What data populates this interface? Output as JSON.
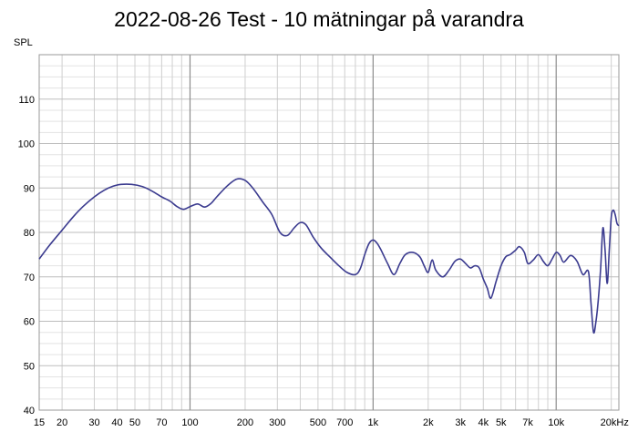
{
  "chart_data": {
    "type": "line",
    "title": "2022-08-26 Test - 10 mätningar på varandra",
    "ylabel": "SPL",
    "xlabel": "",
    "xscale": "log",
    "xlim": [
      15,
      22000
    ],
    "ylim": [
      40,
      120
    ],
    "grid": true,
    "line_color": "#3b3b8f",
    "x_ticks": [
      {
        "value": 15,
        "label": "15"
      },
      {
        "value": 20,
        "label": "20"
      },
      {
        "value": 30,
        "label": "30"
      },
      {
        "value": 40,
        "label": "40"
      },
      {
        "value": 50,
        "label": "50"
      },
      {
        "value": 70,
        "label": "70"
      },
      {
        "value": 100,
        "label": "100"
      },
      {
        "value": 200,
        "label": "200"
      },
      {
        "value": 300,
        "label": "300"
      },
      {
        "value": 500,
        "label": "500"
      },
      {
        "value": 700,
        "label": "700"
      },
      {
        "value": 1000,
        "label": "1k"
      },
      {
        "value": 2000,
        "label": "2k"
      },
      {
        "value": 3000,
        "label": "3k"
      },
      {
        "value": 4000,
        "label": "4k"
      },
      {
        "value": 5000,
        "label": "5k"
      },
      {
        "value": 7000,
        "label": "7k"
      },
      {
        "value": 10000,
        "label": "10k"
      },
      {
        "value": 20000,
        "label": "20kHz"
      }
    ],
    "y_ticks": [
      {
        "value": 40,
        "label": "40"
      },
      {
        "value": 50,
        "label": "50"
      },
      {
        "value": 60,
        "label": "60"
      },
      {
        "value": 70,
        "label": "70"
      },
      {
        "value": 80,
        "label": "80"
      },
      {
        "value": 90,
        "label": "90"
      },
      {
        "value": 100,
        "label": "100"
      },
      {
        "value": 110,
        "label": "110"
      }
    ],
    "series": [
      {
        "x": [
          15,
          17,
          20,
          23,
          26,
          30,
          34,
          38,
          42,
          48,
          55,
          62,
          70,
          78,
          85,
          92,
          100,
          110,
          120,
          130,
          140,
          160,
          180,
          200,
          220,
          250,
          280,
          310,
          340,
          370,
          400,
          430,
          470,
          520,
          580,
          650,
          720,
          800,
          850,
          900,
          950,
          1000,
          1050,
          1100,
          1200,
          1300,
          1400,
          1500,
          1650,
          1800,
          1900,
          2000,
          2100,
          2200,
          2400,
          2600,
          2800,
          3000,
          3200,
          3400,
          3600,
          3800,
          4000,
          4200,
          4400,
          4700,
          5000,
          5300,
          5600,
          6000,
          6300,
          6700,
          7000,
          7500,
          8000,
          8500,
          9000,
          9500,
          10000,
          10500,
          11000,
          12000,
          13000,
          14000,
          15000,
          15500,
          16000,
          16500,
          17000,
          17500,
          18000,
          18500,
          19000,
          19500,
          20000,
          20500,
          21000,
          21500,
          22000
        ],
        "y": [
          74,
          77,
          80.5,
          83.5,
          85.8,
          88,
          89.5,
          90.4,
          90.8,
          90.8,
          90.3,
          89.3,
          88,
          87,
          85.8,
          85.2,
          85.8,
          86.4,
          85.7,
          86.5,
          88,
          90.5,
          92,
          91.7,
          90,
          86.8,
          84,
          80,
          79.3,
          81,
          82.2,
          81.7,
          79,
          76.5,
          74.5,
          72.5,
          71,
          70.5,
          71.8,
          75,
          77.5,
          78.3,
          77.6,
          76.2,
          73,
          70.5,
          73,
          75,
          75.5,
          74.5,
          72.5,
          71,
          73.8,
          71.5,
          70,
          71.5,
          73.5,
          74,
          73,
          72,
          72.5,
          72,
          69.5,
          67.5,
          65.2,
          69,
          72.5,
          74.5,
          75,
          76,
          76.8,
          75.5,
          73,
          73.8,
          75,
          73.5,
          72.5,
          74,
          75.5,
          74.8,
          73.3,
          74.8,
          73.5,
          70.5,
          71.2,
          64,
          57.5,
          60,
          65,
          72,
          81,
          76,
          68.5,
          76,
          83.5,
          85,
          84,
          82,
          81.5
        ]
      }
    ]
  }
}
